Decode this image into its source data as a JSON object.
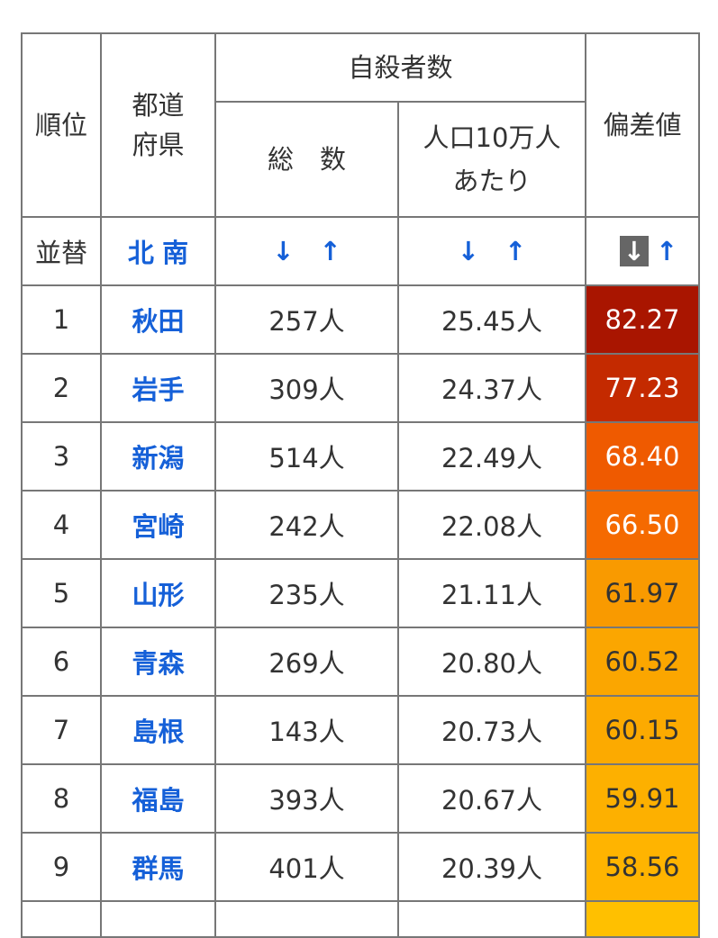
{
  "header": {
    "rank": "順位",
    "pref": "都道\n府県",
    "suicides": "自殺者数",
    "total": "総　数",
    "per100k": "人口10万人\nあたり",
    "deviation": "偏差値"
  },
  "sort_row": {
    "label": "並替",
    "north": "北",
    "south": "南",
    "down": "↓",
    "up": "↑"
  },
  "rows": [
    {
      "rank": "1",
      "pref": "秋田",
      "total": "257人",
      "per": "25.45人",
      "dev": "82.27",
      "color": "#a91500"
    },
    {
      "rank": "2",
      "pref": "岩手",
      "total": "309人",
      "per": "24.37人",
      "dev": "77.23",
      "color": "#c42a00"
    },
    {
      "rank": "3",
      "pref": "新潟",
      "total": "514人",
      "per": "22.49人",
      "dev": "68.40",
      "color": "#ef5a00"
    },
    {
      "rank": "4",
      "pref": "宮崎",
      "total": "242人",
      "per": "22.08人",
      "dev": "66.50",
      "color": "#f56a00"
    },
    {
      "rank": "5",
      "pref": "山形",
      "total": "235人",
      "per": "21.11人",
      "dev": "61.97",
      "color": "#f99a00"
    },
    {
      "rank": "6",
      "pref": "青森",
      "total": "269人",
      "per": "20.80人",
      "dev": "60.52",
      "color": "#fba600"
    },
    {
      "rank": "7",
      "pref": "島根",
      "total": "143人",
      "per": "20.73人",
      "dev": "60.15",
      "color": "#fcaa00"
    },
    {
      "rank": "8",
      "pref": "福島",
      "total": "393人",
      "per": "20.67人",
      "dev": "59.91",
      "color": "#fdb000"
    },
    {
      "rank": "9",
      "pref": "群馬",
      "total": "401人",
      "per": "20.39人",
      "dev": "58.56",
      "color": "#ffb400"
    }
  ],
  "partial_row_color": "#ffc000"
}
